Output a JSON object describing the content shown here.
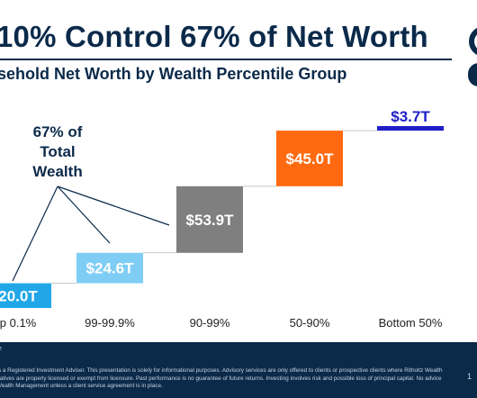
{
  "header": {
    "title": "10% Control 67% of Net Worth",
    "subtitle": "sehold Net Worth by Wealth Percentile Group"
  },
  "colors": {
    "navy": "#0b2a4a",
    "accent_blue": "#1f1fc8",
    "label_blue": "#2d6bd8"
  },
  "chart_data": {
    "type": "bar",
    "subtype": "waterfall",
    "title": "",
    "xlabel": "",
    "ylabel": "",
    "categories": [
      "p 0.1%",
      "99-99.9%",
      "90-99%",
      "50-90%",
      "Bottom 50%"
    ],
    "values": [
      20.0,
      24.6,
      53.9,
      45.0,
      3.7
    ],
    "value_labels": [
      "20.0T",
      "$24.6T",
      "$53.9T",
      "$45.0T",
      "$3.7T"
    ],
    "colors": [
      "#21a7e8",
      "#7fcdf5",
      "#7f7f7f",
      "#ff6a10",
      "#1f1fc8"
    ],
    "annotation": {
      "lines": [
        "67% of",
        "Total",
        "Wealth"
      ],
      "points_to": [
        "p 0.1%",
        "99-99.9%",
        "90-99%"
      ]
    },
    "grid": false,
    "legend": "none"
  },
  "footer": {
    "source": "e",
    "disclaimer": "s a Registered Investment Adviser. This presentation is solely for informational purposes. Advisory services are only offered to clients or prospective clients where Ritholtz Wealth tatives are properly licensed or exempt from licensure. Past performance is no guarantee of future returns. Investing involves risk and possible loss of principal capital. No advice Vealth Management unless a client service agreement is in place.",
    "page": "1"
  }
}
